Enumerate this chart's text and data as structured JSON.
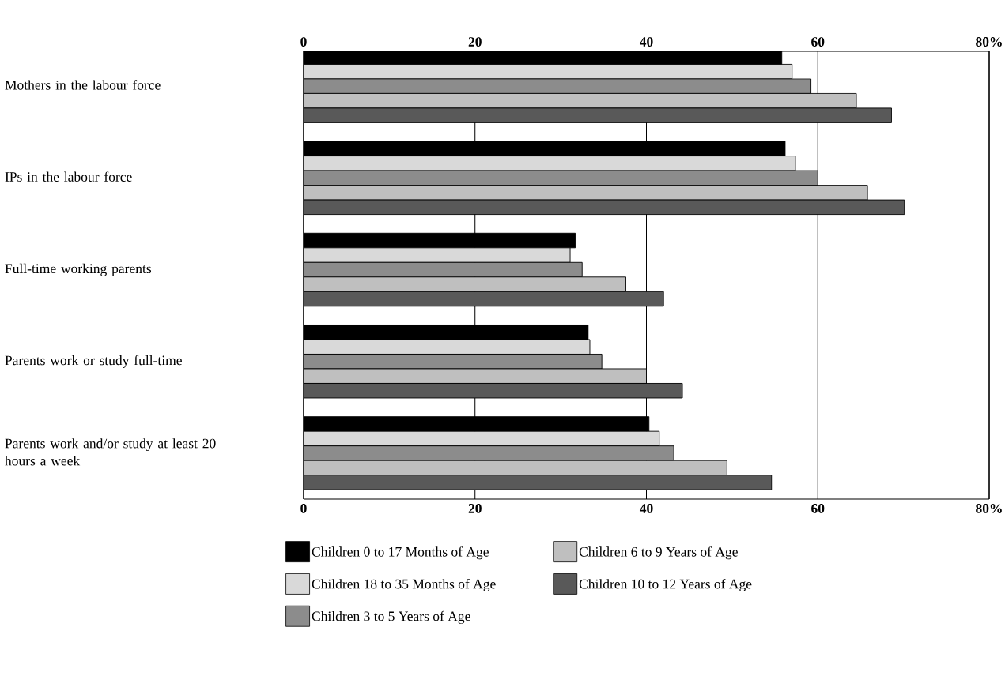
{
  "chart_data": {
    "type": "bar",
    "orientation": "horizontal",
    "categories": [
      "Mothers in the labour force",
      "IPs in the labour force",
      "Full-time working parents",
      "Parents work or study full-time",
      "Parents work and/or study at least 20 hours a week"
    ],
    "series": [
      {
        "name": "Children 0 to 17 Months of Age",
        "color": "#000000",
        "values": [
          55.8,
          56.2,
          31.7,
          33.2,
          40.3
        ]
      },
      {
        "name": "Children 18 to 35 Months of Age",
        "color": "#d9d9d9",
        "values": [
          57.0,
          57.4,
          31.1,
          33.4,
          41.5
        ]
      },
      {
        "name": "Children 3 to 5 Years of Age",
        "color": "#8c8c8c",
        "values": [
          59.2,
          60.0,
          32.5,
          34.8,
          43.2
        ]
      },
      {
        "name": "Children 6 to 9 Years of Age",
        "color": "#bfbfbf",
        "values": [
          64.5,
          65.8,
          37.6,
          40.0,
          49.4
        ]
      },
      {
        "name": "Children 10 to 12 Years of Age",
        "color": "#595959",
        "values": [
          68.6,
          70.1,
          42.0,
          44.2,
          54.6
        ]
      }
    ],
    "xlim": [
      0,
      80
    ],
    "xticks": [
      0,
      20,
      40,
      60,
      {
        "value": 80,
        "label": "80%"
      }
    ],
    "x2lim": [
      0,
      80
    ],
    "x2ticks": [
      0,
      20,
      40,
      60,
      {
        "value": 80,
        "label": "80%"
      }
    ],
    "grid": "x",
    "legend": "bottom"
  }
}
